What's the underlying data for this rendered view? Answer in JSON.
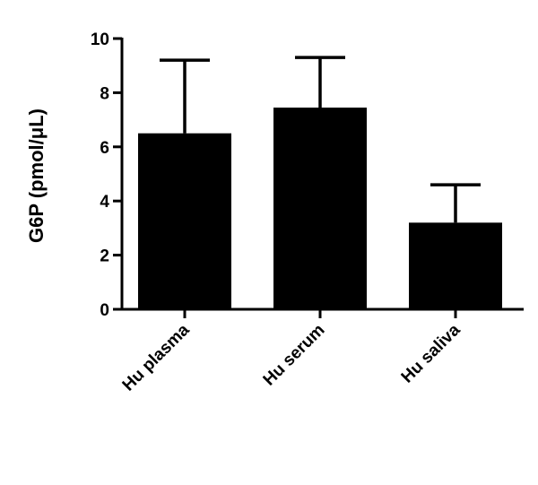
{
  "chart_data": {
    "type": "bar",
    "title": "",
    "xlabel": "",
    "ylabel": "G6P (pmol/μL)",
    "categories": [
      "Hu plasma",
      "Hu serum",
      "Hu saliva"
    ],
    "values": [
      6.5,
      7.45,
      3.2
    ],
    "error_upper": [
      9.2,
      9.3,
      4.6
    ],
    "ylim": [
      0,
      10
    ],
    "yticks": [
      0,
      2,
      4,
      6,
      8,
      10
    ],
    "ytick_labels": [
      "0",
      "2",
      "4",
      "6",
      "8",
      "10"
    ],
    "grid": false,
    "legend": "none",
    "bar_color": "#000000"
  }
}
